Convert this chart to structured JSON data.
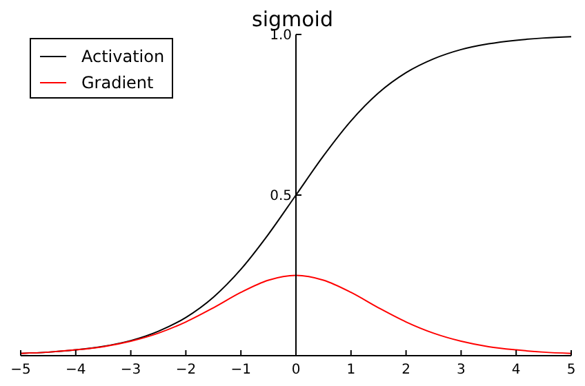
{
  "chart_data": {
    "type": "line",
    "title": "sigmoid",
    "x": [
      -5,
      -4.5,
      -4,
      -3.5,
      -3,
      -2.5,
      -2,
      -1.5,
      -1,
      -0.5,
      0,
      0.5,
      1,
      1.5,
      2,
      2.5,
      3,
      3.5,
      4,
      4.5,
      5
    ],
    "series": [
      {
        "name": "Activation",
        "color": "#000000",
        "values": [
          0.007,
          0.011,
          0.018,
          0.029,
          0.047,
          0.076,
          0.119,
          0.182,
          0.269,
          0.378,
          0.5,
          0.622,
          0.731,
          0.818,
          0.881,
          0.924,
          0.953,
          0.971,
          0.982,
          0.989,
          0.993
        ]
      },
      {
        "name": "Gradient",
        "color": "#ff0000",
        "values": [
          0.007,
          0.011,
          0.018,
          0.028,
          0.045,
          0.07,
          0.105,
          0.149,
          0.197,
          0.235,
          0.25,
          0.235,
          0.197,
          0.149,
          0.105,
          0.07,
          0.045,
          0.028,
          0.018,
          0.011,
          0.007
        ]
      }
    ],
    "xlim": [
      -5,
      5
    ],
    "ylim": [
      0,
      1
    ],
    "xticks": [
      {
        "value": -5,
        "label": "−5"
      },
      {
        "value": -4,
        "label": "−4"
      },
      {
        "value": -3,
        "label": "−3"
      },
      {
        "value": -2,
        "label": "−2"
      },
      {
        "value": -1,
        "label": "−1"
      },
      0,
      1,
      2,
      3,
      4,
      5
    ],
    "yticks": [
      0.5,
      {
        "value": 1,
        "label": "1.0"
      }
    ],
    "legend": "top left",
    "grid": false,
    "marker": "none",
    "line_style": "solid"
  }
}
